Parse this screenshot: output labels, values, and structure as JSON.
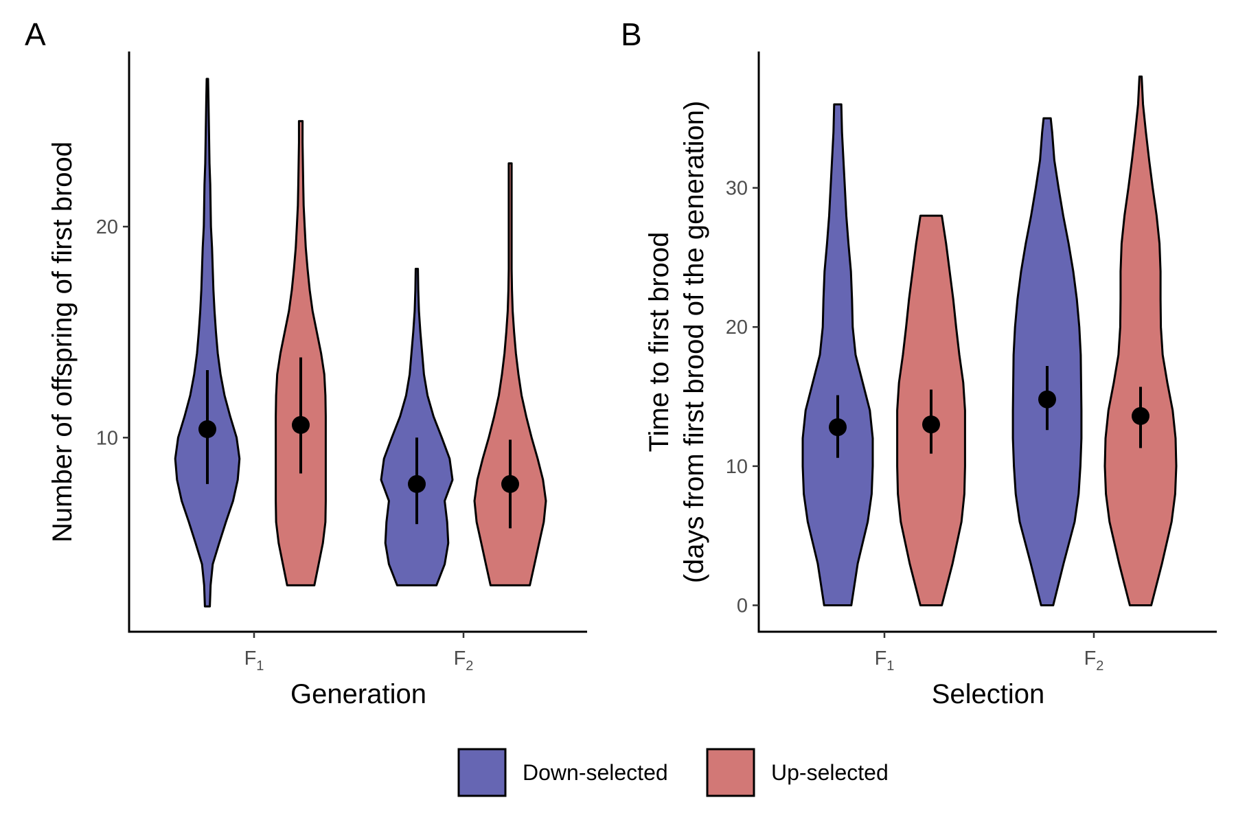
{
  "colors": {
    "down": "#6666b3",
    "up": "#d27876",
    "point": "#000000"
  },
  "legend": {
    "items": [
      {
        "key": "down",
        "label": "Down-selected"
      },
      {
        "key": "up",
        "label": "Up-selected"
      }
    ]
  },
  "chart_data": [
    {
      "panel_label": "A",
      "type": "violin",
      "xlabel": "Generation",
      "ylabel": "Number of offspring of first brood",
      "categories": [
        {
          "main": "F",
          "sub": "1"
        },
        {
          "main": "F",
          "sub": "2"
        }
      ],
      "yticks": [
        10,
        20
      ],
      "ylim": [
        0.8,
        28.3
      ],
      "series": [
        {
          "name": "Down-selected",
          "key": "down",
          "groups": [
            {
              "min": 2,
              "max": 27,
              "profile": [
                [
                  2,
                  0.07
                ],
                [
                  3,
                  0.09
                ],
                [
                  4,
                  0.15
                ],
                [
                  5,
                  0.33
                ],
                [
                  6,
                  0.52
                ],
                [
                  7,
                  0.72
                ],
                [
                  8,
                  0.85
                ],
                [
                  9,
                  0.9
                ],
                [
                  10,
                  0.82
                ],
                [
                  11,
                  0.64
                ],
                [
                  12,
                  0.48
                ],
                [
                  13,
                  0.37
                ],
                [
                  14,
                  0.29
                ],
                [
                  15,
                  0.24
                ],
                [
                  16,
                  0.2
                ],
                [
                  17,
                  0.17
                ],
                [
                  18,
                  0.15
                ],
                [
                  19,
                  0.13
                ],
                [
                  20,
                  0.1
                ],
                [
                  21,
                  0.09
                ],
                [
                  22,
                  0.08
                ],
                [
                  23,
                  0.06
                ],
                [
                  24,
                  0.05
                ],
                [
                  25,
                  0.04
                ],
                [
                  26,
                  0.03
                ],
                [
                  27,
                  0.02
                ]
              ],
              "mean": 10.4,
              "lower": 7.8,
              "upper": 13.2
            },
            {
              "min": 3,
              "max": 18,
              "profile": [
                [
                  3,
                  0.55
                ],
                [
                  4,
                  0.78
                ],
                [
                  5,
                  0.88
                ],
                [
                  6,
                  0.85
                ],
                [
                  7,
                  0.78
                ],
                [
                  8,
                  1.0
                ],
                [
                  9,
                  0.92
                ],
                [
                  10,
                  0.7
                ],
                [
                  11,
                  0.47
                ],
                [
                  12,
                  0.3
                ],
                [
                  13,
                  0.2
                ],
                [
                  14,
                  0.15
                ],
                [
                  15,
                  0.1
                ],
                [
                  16,
                  0.06
                ],
                [
                  17,
                  0.04
                ],
                [
                  18,
                  0.03
                ]
              ],
              "mean": 7.8,
              "lower": 5.9,
              "upper": 10.0
            }
          ]
        },
        {
          "name": "Up-selected",
          "key": "up",
          "groups": [
            {
              "min": 3,
              "max": 25,
              "profile": [
                [
                  3,
                  0.38
                ],
                [
                  4,
                  0.5
                ],
                [
                  5,
                  0.62
                ],
                [
                  6,
                  0.69
                ],
                [
                  7,
                  0.7
                ],
                [
                  8,
                  0.7
                ],
                [
                  9,
                  0.7
                ],
                [
                  10,
                  0.7
                ],
                [
                  11,
                  0.7
                ],
                [
                  12,
                  0.69
                ],
                [
                  13,
                  0.66
                ],
                [
                  14,
                  0.57
                ],
                [
                  15,
                  0.45
                ],
                [
                  16,
                  0.33
                ],
                [
                  17,
                  0.25
                ],
                [
                  18,
                  0.19
                ],
                [
                  19,
                  0.14
                ],
                [
                  20,
                  0.11
                ],
                [
                  21,
                  0.08
                ],
                [
                  22,
                  0.07
                ],
                [
                  23,
                  0.06
                ],
                [
                  24,
                  0.05
                ],
                [
                  25,
                  0.05
                ]
              ],
              "mean": 10.6,
              "lower": 8.3,
              "upper": 13.8
            },
            {
              "min": 3,
              "max": 23,
              "profile": [
                [
                  3,
                  0.55
                ],
                [
                  4,
                  0.68
                ],
                [
                  5,
                  0.81
                ],
                [
                  6,
                  0.94
                ],
                [
                  7,
                  1.0
                ],
                [
                  8,
                  0.92
                ],
                [
                  9,
                  0.77
                ],
                [
                  10,
                  0.6
                ],
                [
                  11,
                  0.45
                ],
                [
                  12,
                  0.32
                ],
                [
                  13,
                  0.23
                ],
                [
                  14,
                  0.16
                ],
                [
                  15,
                  0.11
                ],
                [
                  16,
                  0.07
                ],
                [
                  17,
                  0.05
                ],
                [
                  18,
                  0.04
                ],
                [
                  19,
                  0.04
                ],
                [
                  20,
                  0.04
                ],
                [
                  21,
                  0.04
                ],
                [
                  22,
                  0.04
                ],
                [
                  23,
                  0.04
                ]
              ],
              "mean": 7.8,
              "lower": 5.7,
              "upper": 9.9
            }
          ]
        }
      ]
    },
    {
      "panel_label": "B",
      "type": "violin",
      "xlabel": "Selection",
      "ylabel": [
        "Time to first brood",
        "(days from first brood of the generation)"
      ],
      "categories": [
        {
          "main": "F",
          "sub": "1"
        },
        {
          "main": "F",
          "sub": "2"
        }
      ],
      "yticks": [
        0,
        10,
        20,
        30
      ],
      "ylim": [
        -1.9,
        39.8
      ],
      "series": [
        {
          "name": "Down-selected",
          "key": "down",
          "groups": [
            {
              "min": 0,
              "max": 36,
              "profile": [
                [
                  0,
                  0.38
                ],
                [
                  3,
                  0.56
                ],
                [
                  6,
                  0.84
                ],
                [
                  8,
                  0.95
                ],
                [
                  10,
                  0.98
                ],
                [
                  12,
                  0.98
                ],
                [
                  14,
                  0.9
                ],
                [
                  16,
                  0.7
                ],
                [
                  18,
                  0.5
                ],
                [
                  20,
                  0.42
                ],
                [
                  22,
                  0.4
                ],
                [
                  24,
                  0.37
                ],
                [
                  26,
                  0.3
                ],
                [
                  28,
                  0.24
                ],
                [
                  30,
                  0.2
                ],
                [
                  32,
                  0.16
                ],
                [
                  34,
                  0.12
                ],
                [
                  36,
                  0.1
                ]
              ],
              "mean": 12.8,
              "lower": 10.6,
              "upper": 15.1
            },
            {
              "min": 0,
              "max": 35,
              "profile": [
                [
                  0,
                  0.17
                ],
                [
                  3,
                  0.46
                ],
                [
                  6,
                  0.77
                ],
                [
                  8,
                  0.88
                ],
                [
                  10,
                  0.93
                ],
                [
                  12,
                  0.96
                ],
                [
                  14,
                  0.96
                ],
                [
                  16,
                  0.95
                ],
                [
                  18,
                  0.94
                ],
                [
                  20,
                  0.9
                ],
                [
                  22,
                  0.83
                ],
                [
                  24,
                  0.73
                ],
                [
                  26,
                  0.6
                ],
                [
                  28,
                  0.45
                ],
                [
                  30,
                  0.32
                ],
                [
                  32,
                  0.2
                ],
                [
                  34,
                  0.14
                ],
                [
                  35,
                  0.1
                ]
              ],
              "mean": 14.8,
              "lower": 12.6,
              "upper": 17.2
            }
          ]
        },
        {
          "name": "Up-selected",
          "key": "up",
          "groups": [
            {
              "min": 0,
              "max": 28,
              "profile": [
                [
                  0,
                  0.3
                ],
                [
                  3,
                  0.6
                ],
                [
                  6,
                  0.85
                ],
                [
                  8,
                  0.93
                ],
                [
                  10,
                  0.95
                ],
                [
                  12,
                  0.95
                ],
                [
                  14,
                  0.95
                ],
                [
                  16,
                  0.9
                ],
                [
                  18,
                  0.79
                ],
                [
                  20,
                  0.7
                ],
                [
                  22,
                  0.62
                ],
                [
                  24,
                  0.52
                ],
                [
                  26,
                  0.42
                ],
                [
                  28,
                  0.3
                ]
              ],
              "mean": 13.0,
              "lower": 10.9,
              "upper": 15.5
            },
            {
              "min": 0,
              "max": 38,
              "profile": [
                [
                  0,
                  0.3
                ],
                [
                  3,
                  0.6
                ],
                [
                  6,
                  0.87
                ],
                [
                  8,
                  0.97
                ],
                [
                  10,
                  1.0
                ],
                [
                  12,
                  0.98
                ],
                [
                  14,
                  0.9
                ],
                [
                  16,
                  0.75
                ],
                [
                  18,
                  0.62
                ],
                [
                  20,
                  0.57
                ],
                [
                  22,
                  0.56
                ],
                [
                  24,
                  0.56
                ],
                [
                  26,
                  0.53
                ],
                [
                  28,
                  0.45
                ],
                [
                  30,
                  0.34
                ],
                [
                  32,
                  0.24
                ],
                [
                  34,
                  0.15
                ],
                [
                  36,
                  0.07
                ],
                [
                  38,
                  0.03
                ]
              ],
              "mean": 13.6,
              "lower": 11.3,
              "upper": 15.7
            }
          ]
        }
      ]
    }
  ]
}
